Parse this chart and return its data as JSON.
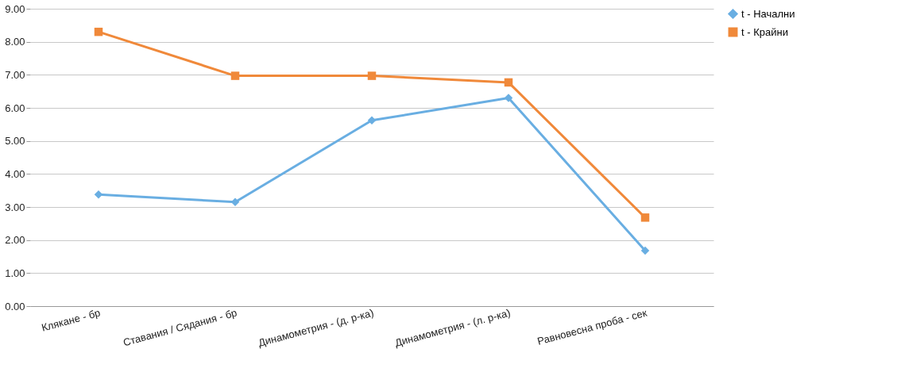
{
  "chart_data": {
    "type": "line",
    "categories": [
      "Клякане - бр",
      "Ставания / Сядания - бр",
      "Динамометрия  - (д. р-ка)",
      "Динамометрия - (л. р-ка)",
      "Равновесна проба - сек"
    ],
    "series": [
      {
        "name": "t - Начални",
        "color": "#69aee2",
        "marker": "diamond",
        "values": [
          3.38,
          3.15,
          5.62,
          6.3,
          1.68
        ]
      },
      {
        "name": "t - Крайни",
        "color": "#f0893a",
        "marker": "square",
        "values": [
          8.3,
          6.97,
          6.97,
          6.77,
          2.68
        ]
      }
    ],
    "ylim": [
      0,
      9
    ],
    "yticks": [
      {
        "value": 0,
        "label": "0.00"
      },
      {
        "value": 1,
        "label": "1.00"
      },
      {
        "value": 2,
        "label": "2.00"
      },
      {
        "value": 3,
        "label": "3.00"
      },
      {
        "value": 4,
        "label": "4.00"
      },
      {
        "value": 5,
        "label": "5.00"
      },
      {
        "value": 6,
        "label": "6.00"
      },
      {
        "value": 7,
        "label": "7.00"
      },
      {
        "value": 8,
        "label": "8.00"
      },
      {
        "value": 9,
        "label": "9.00"
      }
    ],
    "grid": "y",
    "legend": "right",
    "line_style": "solid"
  }
}
